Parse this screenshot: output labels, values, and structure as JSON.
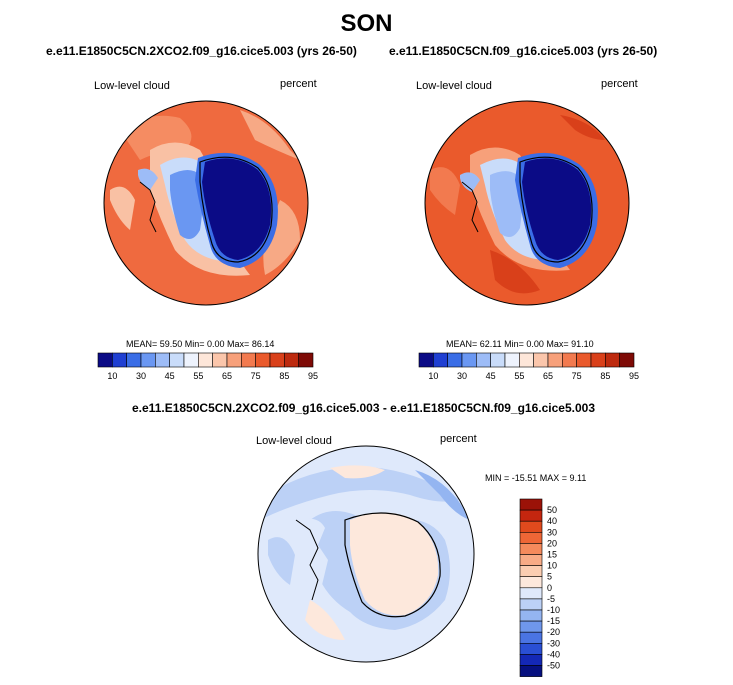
{
  "figure": {
    "title": "SON"
  },
  "panels": [
    {
      "case": "e.e11.E1850C5CN.2XCO2.f09_g16.cice5.003 (yrs 26-50)",
      "variable": "Low-level cloud",
      "units": "percent",
      "stats": "MEAN=  59.50  Min=   0.00  Max=  86.14"
    },
    {
      "case": "e.e11.E1850C5CN.f09_g16.cice5.003 (yrs 26-50)",
      "variable": "Low-level cloud",
      "units": "percent",
      "stats": "MEAN=  62.11  Min=   0.00  Max=  91.10"
    }
  ],
  "difference": {
    "title": "e.e11.E1850C5CN.2XCO2.f09_g16.cice5.003 - e.e11.E1850C5CN.f09_g16.cice5.003",
    "variable": "Low-level cloud",
    "units": "percent",
    "stats": "MIN = -15.51 MAX =  9.11"
  },
  "colorbar_horizontal": {
    "tick_labels": [
      "10",
      "30",
      "45",
      "55",
      "65",
      "75",
      "85",
      "95"
    ],
    "colors": [
      "#0b0b86",
      "#1f3fd2",
      "#3a6de6",
      "#6a97f2",
      "#9dbcf7",
      "#c9dcfa",
      "#eef3fd",
      "#fde6d9",
      "#fbc6ab",
      "#f7a07a",
      "#f27a4f",
      "#ea5a2c",
      "#d9401a",
      "#bd2a0e",
      "#7e0a06"
    ]
  },
  "colorbar_vertical": {
    "tick_labels": [
      "50",
      "40",
      "30",
      "20",
      "15",
      "10",
      "5",
      "0",
      "-5",
      "-10",
      "-15",
      "-20",
      "-30",
      "-40",
      "-50"
    ],
    "colors": [
      "#9b1208",
      "#c4260f",
      "#e04a1d",
      "#ee6636",
      "#f58a5c",
      "#f8ab86",
      "#fbcdb1",
      "#fde8dc",
      "#dfe9fb",
      "#bcd1f6",
      "#94b5f1",
      "#6f97ec",
      "#4a74e3",
      "#2a4fd4",
      "#1428b6",
      "#06107f"
    ]
  }
}
